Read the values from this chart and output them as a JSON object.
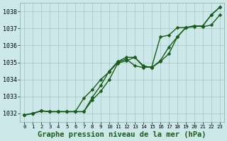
{
  "xlabel": "Graphe pression niveau de la mer (hPa)",
  "ylim": [
    1031.5,
    1038.5
  ],
  "xlim": [
    -0.5,
    23.5
  ],
  "yticks": [
    1032,
    1033,
    1034,
    1035,
    1036,
    1037,
    1038
  ],
  "xticks": [
    0,
    1,
    2,
    3,
    4,
    5,
    6,
    7,
    8,
    9,
    10,
    11,
    12,
    13,
    14,
    15,
    16,
    17,
    18,
    19,
    20,
    21,
    22,
    23
  ],
  "bg_color": "#cce8e8",
  "grid_color": "#aacccc",
  "line_color": "#1a5c1a",
  "line1_y": [
    1031.9,
    1032.0,
    1032.15,
    1032.1,
    1032.1,
    1032.1,
    1032.1,
    1032.1,
    1032.8,
    1033.3,
    1034.0,
    1034.95,
    1035.1,
    1035.3,
    1034.75,
    1034.7,
    1035.05,
    1035.5,
    1036.5,
    1037.05,
    1037.15,
    1037.1,
    1037.2,
    1037.8
  ],
  "line2_y": [
    1031.9,
    1032.0,
    1032.15,
    1032.1,
    1032.1,
    1032.1,
    1032.1,
    1032.1,
    1032.95,
    1033.65,
    1034.5,
    1035.05,
    1035.3,
    1035.3,
    1034.8,
    1034.7,
    1035.1,
    1035.9,
    1036.5,
    1037.05,
    1037.15,
    1037.15,
    1037.8,
    1038.25
  ],
  "line3_y": [
    1031.9,
    1032.0,
    1032.15,
    1032.1,
    1032.1,
    1032.1,
    1032.1,
    1032.9,
    1033.4,
    1034.0,
    1034.45,
    1035.0,
    1035.2,
    1034.8,
    1034.7,
    1034.75,
    1036.5,
    1036.6,
    1037.05,
    1037.05,
    1037.1,
    1037.15,
    1037.8,
    1038.25
  ],
  "marker": "D",
  "marker_size": 2.5,
  "linewidth": 1.0,
  "tick_fontsize": 6.0,
  "label_fontsize": 7.5,
  "label_fontweight": "bold"
}
